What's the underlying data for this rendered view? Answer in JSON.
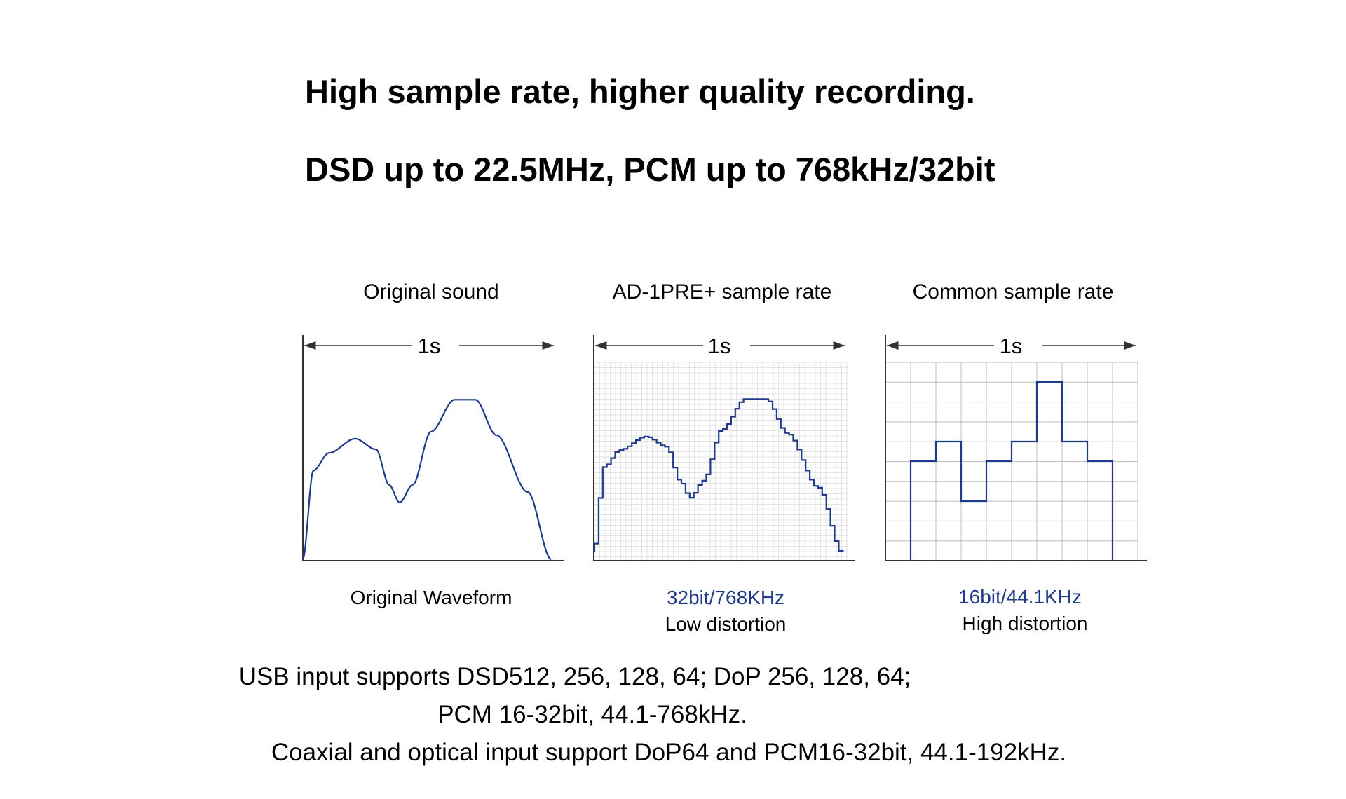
{
  "headline": "High sample rate, higher quality recording.",
  "subheadline": "DSD up to 22.5MHz, PCM up to 768kHz/32bit",
  "panels": [
    {
      "title": "Original sound",
      "duration": "1s",
      "caption": "Original Waveform",
      "caption2": ""
    },
    {
      "title": "AD-1PRE+ sample rate",
      "duration": "1s",
      "caption": "32bit/768KHz",
      "caption2": "Low distortion"
    },
    {
      "title": "Common sample rate",
      "duration": "1s",
      "caption": "16bit/44.1KHz",
      "caption2": "High distortion"
    }
  ],
  "footer": [
    "USB input supports DSD512, 256, 128, 64; DoP 256, 128, 64;",
    "PCM 16-32bit, 44.1-768kHz.",
    "Coaxial and optical input support DoP64 and PCM16-32bit, 44.1-192kHz."
  ],
  "colors": {
    "waveform": "#1f3a8a",
    "grid_fine": "#e3e3e3",
    "grid_coarse": "#bdbdbd",
    "axis": "#333333"
  }
}
